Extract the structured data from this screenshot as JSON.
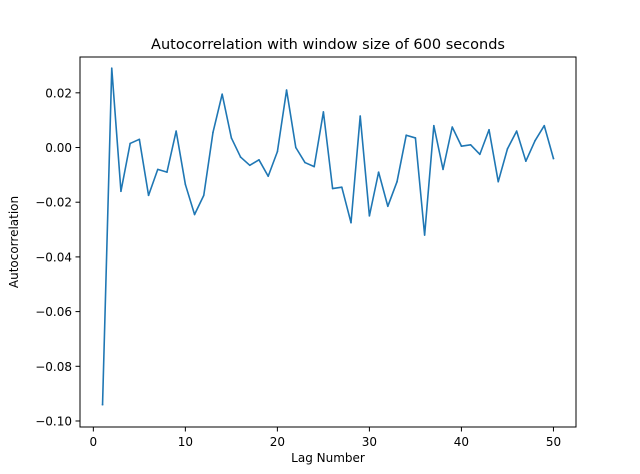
{
  "chart_data": {
    "type": "line",
    "title": "Autocorrelation with window size of 600 seconds",
    "xlabel": "Lag Number",
    "ylabel": "Autocorrelation",
    "xlim": [
      -1.45,
      52.45
    ],
    "ylim": [
      -0.1022,
      0.0331
    ],
    "xticks": [
      0,
      10,
      20,
      30,
      40,
      50
    ],
    "xtick_labels": [
      "0",
      "10",
      "20",
      "30",
      "40",
      "50"
    ],
    "yticks": [
      -0.1,
      -0.08,
      -0.06,
      -0.04,
      -0.02,
      0.0,
      0.02
    ],
    "ytick_labels": [
      "−0.10",
      "−0.08",
      "−0.06",
      "−0.04",
      "−0.02",
      "0.00",
      "0.02"
    ],
    "grid": false,
    "legend": "none",
    "series": [
      {
        "color": "#1f77b4",
        "x": [
          1,
          2,
          3,
          4,
          5,
          6,
          7,
          8,
          9,
          10,
          11,
          12,
          13,
          14,
          15,
          16,
          17,
          18,
          19,
          20,
          21,
          22,
          23,
          24,
          25,
          26,
          27,
          28,
          29,
          30,
          31,
          32,
          33,
          34,
          35,
          36,
          37,
          38,
          39,
          40,
          41,
          42,
          43,
          44,
          45,
          46,
          47,
          48,
          49,
          50
        ],
        "y": [
          -0.094,
          0.029,
          -0.016,
          0.0015,
          0.003,
          -0.0175,
          -0.008,
          -0.009,
          0.006,
          -0.0135,
          -0.0245,
          -0.0175,
          0.0055,
          0.0195,
          0.0035,
          -0.0035,
          -0.0065,
          -0.0045,
          -0.0105,
          -0.0015,
          0.021,
          0.0,
          -0.0055,
          -0.007,
          0.013,
          -0.015,
          -0.0145,
          -0.0275,
          0.0115,
          -0.025,
          -0.009,
          -0.0215,
          -0.0125,
          0.0045,
          0.0035,
          -0.032,
          0.008,
          -0.008,
          0.0075,
          0.0005,
          0.001,
          -0.0025,
          0.0065,
          -0.0125,
          -0.0005,
          0.006,
          -0.005,
          0.0025,
          0.008,
          -0.004
        ]
      }
    ]
  }
}
